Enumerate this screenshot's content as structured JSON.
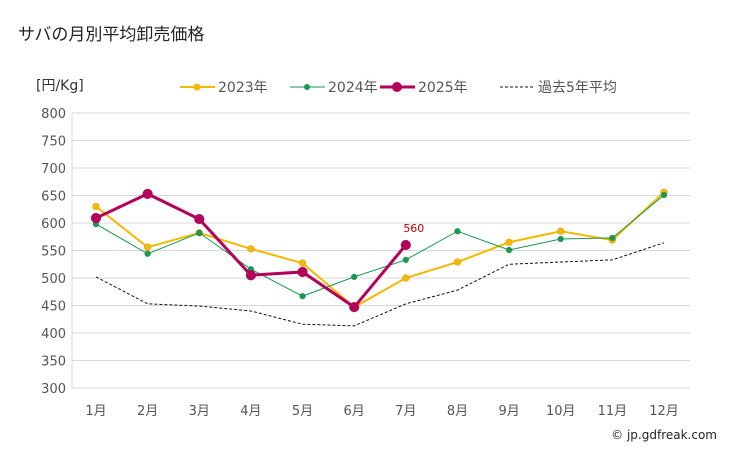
{
  "chart_data": {
    "type": "line",
    "title": "サバの月別平均卸売価格",
    "ylabel": "[円/Kg]",
    "ylim": [
      300,
      800
    ],
    "yticks": [
      300,
      350,
      400,
      450,
      500,
      550,
      600,
      650,
      700,
      750,
      800
    ],
    "categories": [
      "1月",
      "2月",
      "3月",
      "4月",
      "5月",
      "6月",
      "7月",
      "8月",
      "9月",
      "10月",
      "11月",
      "12月"
    ],
    "grid": true,
    "legend": "top",
    "series": [
      {
        "name": "2023年",
        "color": "#f5b800",
        "values": [
          630,
          556,
          582,
          553,
          527,
          447,
          500,
          529,
          565,
          585,
          569,
          656
        ]
      },
      {
        "name": "2024年",
        "color": "#1a9a50",
        "values": [
          598,
          544,
          582,
          516,
          467,
          502,
          533,
          585,
          551,
          571,
          573,
          651
        ]
      },
      {
        "name": "2025年",
        "color": "#b5005b",
        "values": [
          609,
          653,
          607,
          505,
          511,
          447,
          560,
          null,
          null,
          null,
          null,
          null
        ]
      },
      {
        "name": "過去5年平均",
        "color": "#111111",
        "values": [
          502,
          453,
          449,
          440,
          416,
          413,
          453,
          478,
          525,
          529,
          533,
          564
        ]
      }
    ],
    "annotations": [
      {
        "series": "2025年",
        "month": "7月",
        "text": "560"
      }
    ]
  },
  "credit": "© jp.gdfreak.com"
}
